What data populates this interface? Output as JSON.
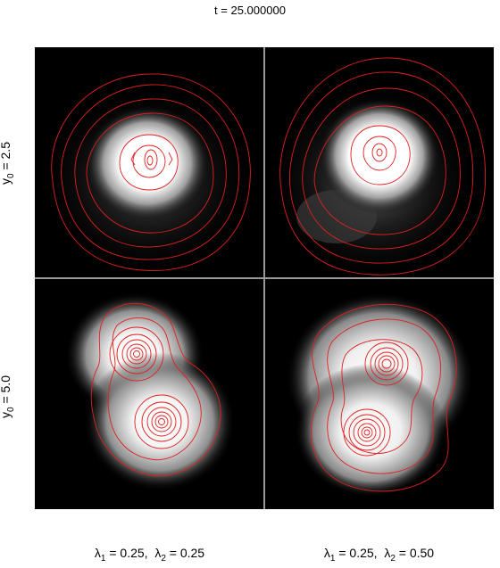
{
  "title": "t = 25.000000",
  "rows": [
    {
      "label_main": "y",
      "label_sub": "0",
      "label_rest": " = 2.5"
    },
    {
      "label_main": "y",
      "label_sub": "0",
      "label_rest": " = 5.0"
    }
  ],
  "columns": [
    {
      "l1": "λ",
      "s1": "1",
      "r1": " = 0.25,  ",
      "l2": "λ",
      "s2": "2",
      "r2": " = 0.25"
    },
    {
      "l1": "λ",
      "s1": "1",
      "r1": " = 0.25,  ",
      "l2": "λ",
      "s2": "2",
      "r2": " = 0.50"
    }
  ],
  "colors": {
    "background": "#000000",
    "contour": "#e02020",
    "glow": "#ffffff",
    "separator": "#9a9a9a"
  }
}
